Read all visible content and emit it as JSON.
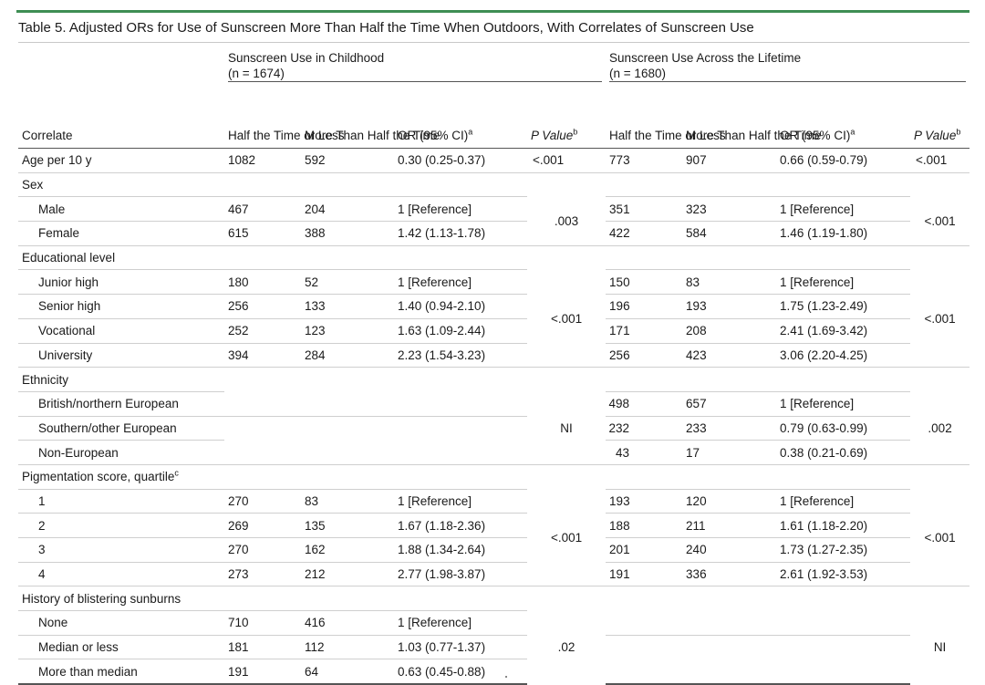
{
  "title": "Table 5. Adjusted ORs for Use of Sunscreen More Than Half the Time When Outdoors, With Correlates of Sunscreen Use",
  "groups": {
    "childhood": {
      "name": "Sunscreen Use in Childhood",
      "n": "(n = 1674)"
    },
    "lifetime": {
      "name": "Sunscreen Use Across the Lifetime",
      "n": "(n = 1680)"
    }
  },
  "columns": {
    "correlate": "Correlate",
    "half_or_less": "Half the\nTime or\nLess",
    "more_than_half": "More Than\nHalf the\nTime",
    "or": "OR (95% CI)",
    "or_sup": "a",
    "p_value": "P Value",
    "p_sup": "b"
  },
  "rows": {
    "age": {
      "label": "Age per 10 y",
      "c_half": "1082",
      "c_more": "592",
      "c_or": "0.30 (0.25-0.37)",
      "c_p": "<.001",
      "l_half": "773",
      "l_more": "907",
      "l_or": "0.66 (0.59-0.79)",
      "l_p": "<.001"
    },
    "sex": {
      "label": "Sex",
      "c_p": ".003",
      "l_p": "<.001",
      "items": [
        {
          "label": "Male",
          "c_half": "467",
          "c_more": "204",
          "c_or": "1 [Reference]",
          "l_half": "351",
          "l_more": "323",
          "l_or": "1 [Reference]"
        },
        {
          "label": "Female",
          "c_half": "615",
          "c_more": "388",
          "c_or": "1.42 (1.13-1.78)",
          "l_half": "422",
          "l_more": "584",
          "l_or": "1.46 (1.19-1.80)"
        }
      ]
    },
    "edu": {
      "label": "Educational level",
      "c_p": "<.001",
      "l_p": "<.001",
      "items": [
        {
          "label": "Junior high",
          "c_half": "180",
          "c_more": "52",
          "c_or": "1 [Reference]",
          "l_half": "150",
          "l_more": "83",
          "l_or": "1 [Reference]"
        },
        {
          "label": "Senior high",
          "c_half": "256",
          "c_more": "133",
          "c_or": "1.40 (0.94-2.10)",
          "l_half": "196",
          "l_more": "193",
          "l_or": "1.75 (1.23-2.49)"
        },
        {
          "label": "Vocational",
          "c_half": "252",
          "c_more": "123",
          "c_or": "1.63 (1.09-2.44)",
          "l_half": "171",
          "l_more": "208",
          "l_or": "2.41 (1.69-3.42)"
        },
        {
          "label": "University",
          "c_half": "394",
          "c_more": "284",
          "c_or": "2.23 (1.54-3.23)",
          "l_half": "256",
          "l_more": "423",
          "l_or": "3.06 (2.20-4.25)"
        }
      ]
    },
    "eth": {
      "label": "Ethnicity",
      "c_p": "NI",
      "l_p": ".002",
      "items": [
        {
          "label": "British/northern European",
          "l_half": "498",
          "l_more": "657",
          "l_or": "1 [Reference]"
        },
        {
          "label": "Southern/other European",
          "l_half": "232",
          "l_more": "233",
          "l_or": "0.79 (0.63-0.99)"
        },
        {
          "label": "Non-European",
          "l_half": "43",
          "l_more": "17",
          "l_or": "0.38 (0.21-0.69)"
        }
      ]
    },
    "pig": {
      "label": "Pigmentation score, quartile",
      "label_sup": "c",
      "c_p": "<.001",
      "l_p": "<.001",
      "items": [
        {
          "label": "1",
          "c_half": "270",
          "c_more": "83",
          "c_or": "1 [Reference]",
          "l_half": "193",
          "l_more": "120",
          "l_or": "1 [Reference]"
        },
        {
          "label": "2",
          "c_half": "269",
          "c_more": "135",
          "c_or": "1.67 (1.18-2.36)",
          "l_half": "188",
          "l_more": "211",
          "l_or": "1.61 (1.18-2.20)"
        },
        {
          "label": "3",
          "c_half": "270",
          "c_more": "162",
          "c_or": "1.88 (1.34-2.64)",
          "l_half": "201",
          "l_more": "240",
          "l_or": "1.73 (1.27-2.35)"
        },
        {
          "label": "4",
          "c_half": "273",
          "c_more": "212",
          "c_or": "2.77 (1.98-3.87)",
          "l_half": "191",
          "l_more": "336",
          "l_or": "2.61 (1.92-3.53)"
        }
      ]
    },
    "burn": {
      "label": "History of blistering sunburns",
      "c_p": ".02",
      "l_p": "NI",
      "items": [
        {
          "label": "None",
          "c_half": "710",
          "c_more": "416",
          "c_or": "1 [Reference]"
        },
        {
          "label": "Median or less",
          "c_half": "181",
          "c_more": "112",
          "c_or": "1.03 (0.77-1.37)"
        },
        {
          "label": "More than median",
          "c_half": "191",
          "c_more": "64",
          "c_or": "0.63 (0.45-0.88)"
        }
      ]
    }
  },
  "colors": {
    "accent": "#3e8e54"
  }
}
